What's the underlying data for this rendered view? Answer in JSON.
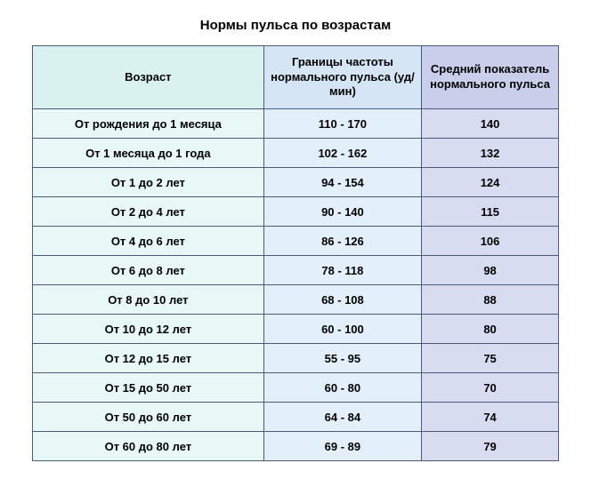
{
  "title": "Нормы пульса по возрастам",
  "columns": [
    "Возраст",
    "Границы частоты нормального пульса (уд/мин)",
    "Средний показатель нормального пульса"
  ],
  "rows": [
    {
      "age": "От рождения до 1 месяца",
      "range": "110 - 170",
      "avg": "140"
    },
    {
      "age": "От 1 месяца до 1 года",
      "range": "102 - 162",
      "avg": "132"
    },
    {
      "age": "От 1 до 2 лет",
      "range": "94 - 154",
      "avg": "124"
    },
    {
      "age": "От 2 до 4 лет",
      "range": "90 - 140",
      "avg": "115"
    },
    {
      "age": "От 4 до 6 лет",
      "range": "86 - 126",
      "avg": "106"
    },
    {
      "age": "От 6 до 8 лет",
      "range": "78 - 118",
      "avg": "98"
    },
    {
      "age": "От 8 до 10 лет",
      "range": "68 - 108",
      "avg": "88"
    },
    {
      "age": "От 10 до 12 лет",
      "range": "60 - 100",
      "avg": "80"
    },
    {
      "age": "От 12 до 15 лет",
      "range": "55 - 95",
      "avg": "75"
    },
    {
      "age": "От 15 до 50 лет",
      "range": "60 - 80",
      "avg": "70"
    },
    {
      "age": "От 50 до 60 лет",
      "range": "64 - 84",
      "avg": "74"
    },
    {
      "age": "От 60 до 80 лет",
      "range": "69 - 89",
      "avg": "79"
    }
  ],
  "style": {
    "header_bg": [
      "#d9f2f0",
      "#d5e5f5",
      "#c9cfeb"
    ],
    "cell_bg": [
      "#e8f8f6",
      "#e3effa",
      "#d7dcf0"
    ],
    "border_color": "#4a5a7a",
    "font_family": "Arial",
    "title_fontsize": 15,
    "cell_fontsize": 13,
    "column_widths_pct": [
      44,
      30,
      26
    ]
  }
}
